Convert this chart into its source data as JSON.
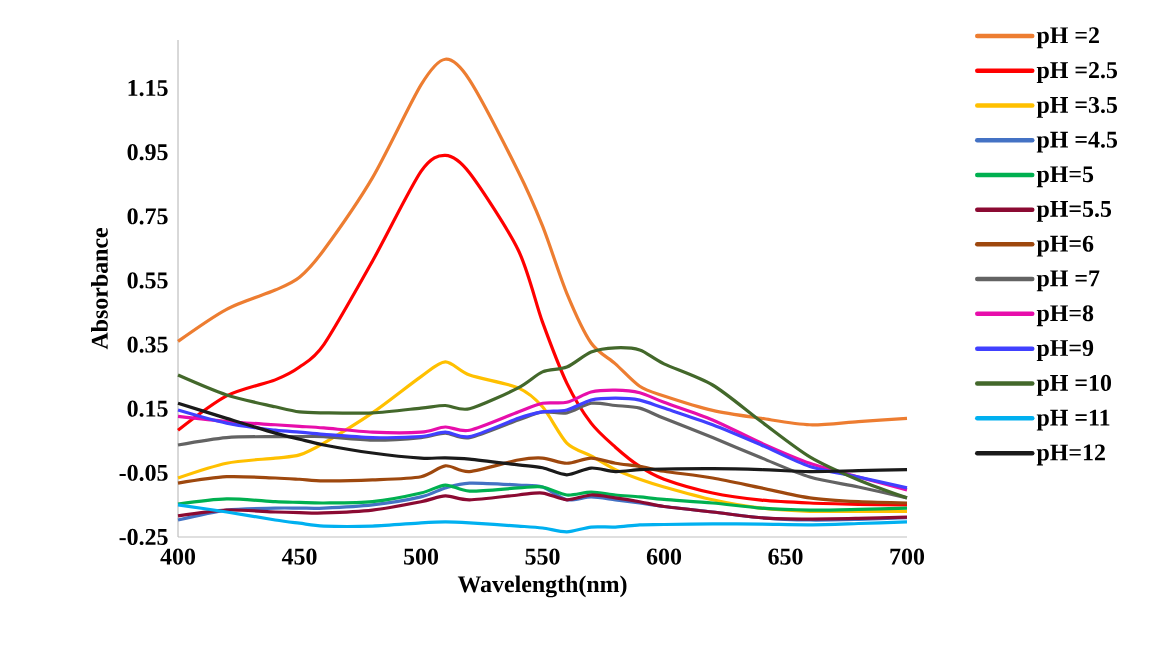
{
  "chart_data": {
    "type": "line",
    "xlabel": "Wavelength(nm)",
    "ylabel": "Absorbance",
    "legend": "right",
    "xlim": [
      400,
      700
    ],
    "ylim": [
      -0.25,
      1.3
    ],
    "xticks": [
      400,
      450,
      500,
      550,
      600,
      650,
      700
    ],
    "yticks": [
      -0.25,
      -0.05,
      0.15,
      0.35,
      0.55,
      0.75,
      0.95,
      1.15
    ],
    "x": [
      400,
      420,
      440,
      450,
      460,
      480,
      500,
      510,
      520,
      540,
      550,
      560,
      570,
      580,
      590,
      600,
      620,
      640,
      660,
      680,
      700
    ],
    "series": [
      {
        "name": "pH =2",
        "color": "#ed7d31",
        "values": [
          0.36,
          0.46,
          0.52,
          0.56,
          0.645,
          0.87,
          1.16,
          1.24,
          1.175,
          0.89,
          0.72,
          0.51,
          0.355,
          0.29,
          0.22,
          0.19,
          0.145,
          0.12,
          0.1,
          0.11,
          0.12
        ]
      },
      {
        "name": "pH =2.5",
        "color": "#ff0000",
        "values": [
          0.083,
          0.19,
          0.24,
          0.28,
          0.35,
          0.61,
          0.89,
          0.94,
          0.885,
          0.645,
          0.42,
          0.23,
          0.105,
          0.03,
          -0.03,
          -0.07,
          -0.113,
          -0.135,
          -0.144,
          -0.148,
          -0.15
        ]
      },
      {
        "name": "pH =3.5",
        "color": "#ffc000",
        "values": [
          -0.066,
          -0.02,
          -0.004,
          0.006,
          0.043,
          0.137,
          0.25,
          0.296,
          0.255,
          0.215,
          0.156,
          0.043,
          0.003,
          -0.04,
          -0.07,
          -0.094,
          -0.134,
          -0.16,
          -0.17,
          -0.17,
          -0.17
        ]
      },
      {
        "name": "pH =4.5",
        "color": "#4472c4",
        "values": [
          -0.197,
          -0.166,
          -0.16,
          -0.16,
          -0.16,
          -0.15,
          -0.125,
          -0.097,
          -0.082,
          -0.088,
          -0.094,
          -0.134,
          -0.125,
          -0.134,
          -0.144,
          -0.155,
          -0.172,
          -0.19,
          -0.197,
          -0.195,
          -0.19
        ]
      },
      {
        "name": "pH=5",
        "color": "#00b050",
        "values": [
          -0.147,
          -0.131,
          -0.14,
          -0.142,
          -0.144,
          -0.14,
          -0.113,
          -0.088,
          -0.107,
          -0.097,
          -0.094,
          -0.119,
          -0.11,
          -0.119,
          -0.125,
          -0.133,
          -0.144,
          -0.16,
          -0.166,
          -0.164,
          -0.16
        ]
      },
      {
        "name": "pH=5.5",
        "color": "#8b0a32",
        "values": [
          -0.184,
          -0.166,
          -0.172,
          -0.174,
          -0.175,
          -0.166,
          -0.14,
          -0.122,
          -0.134,
          -0.119,
          -0.113,
          -0.134,
          -0.119,
          -0.128,
          -0.14,
          -0.155,
          -0.172,
          -0.19,
          -0.194,
          -0.192,
          -0.188
        ]
      },
      {
        "name": "pH=6",
        "color": "#9e480e",
        "values": [
          -0.082,
          -0.062,
          -0.066,
          -0.07,
          -0.075,
          -0.072,
          -0.062,
          -0.028,
          -0.046,
          -0.01,
          -0.004,
          -0.02,
          -0.004,
          -0.02,
          -0.03,
          -0.045,
          -0.066,
          -0.097,
          -0.128,
          -0.14,
          -0.144
        ]
      },
      {
        "name": "pH =7",
        "color": "#636363",
        "values": [
          0.037,
          0.06,
          0.063,
          0.063,
          0.063,
          0.052,
          0.06,
          0.074,
          0.06,
          0.115,
          0.14,
          0.137,
          0.167,
          0.16,
          0.152,
          0.12,
          0.06,
          -0.003,
          -0.063,
          -0.094,
          -0.128
        ]
      },
      {
        "name": "pH=8",
        "color": "#e70eab",
        "values": [
          0.126,
          0.11,
          0.1,
          0.095,
          0.09,
          0.077,
          0.077,
          0.093,
          0.083,
          0.14,
          0.167,
          0.17,
          0.202,
          0.208,
          0.2,
          0.17,
          0.115,
          0.043,
          -0.02,
          -0.063,
          -0.103
        ]
      },
      {
        "name": "pH=9",
        "color": "#4040ff",
        "values": [
          0.146,
          0.105,
          0.083,
          0.077,
          0.07,
          0.06,
          0.063,
          0.077,
          0.063,
          0.12,
          0.14,
          0.146,
          0.177,
          0.183,
          0.177,
          0.152,
          0.1,
          0.037,
          -0.03,
          -0.063,
          -0.097
        ]
      },
      {
        "name": "pH =10",
        "color": "#43682b",
        "values": [
          0.255,
          0.193,
          0.156,
          0.14,
          0.137,
          0.137,
          0.152,
          0.16,
          0.15,
          0.215,
          0.265,
          0.28,
          0.327,
          0.34,
          0.333,
          0.29,
          0.224,
          0.11,
          0.0,
          -0.072,
          -0.128
        ]
      },
      {
        "name": "pH =11",
        "color": "#00b0f0",
        "values": [
          -0.15,
          -0.172,
          -0.197,
          -0.207,
          -0.216,
          -0.216,
          -0.206,
          -0.203,
          -0.206,
          -0.216,
          -0.222,
          -0.234,
          -0.219,
          -0.219,
          -0.212,
          -0.211,
          -0.209,
          -0.21,
          -0.212,
          -0.208,
          -0.203
        ]
      },
      {
        "name": "pH=12",
        "color": "#1a1a1a",
        "values": [
          0.167,
          0.12,
          0.074,
          0.055,
          0.037,
          0.012,
          -0.004,
          -0.003,
          -0.007,
          -0.025,
          -0.034,
          -0.056,
          -0.035,
          -0.046,
          -0.04,
          -0.038,
          -0.037,
          -0.04,
          -0.046,
          -0.043,
          -0.04
        ]
      }
    ]
  }
}
